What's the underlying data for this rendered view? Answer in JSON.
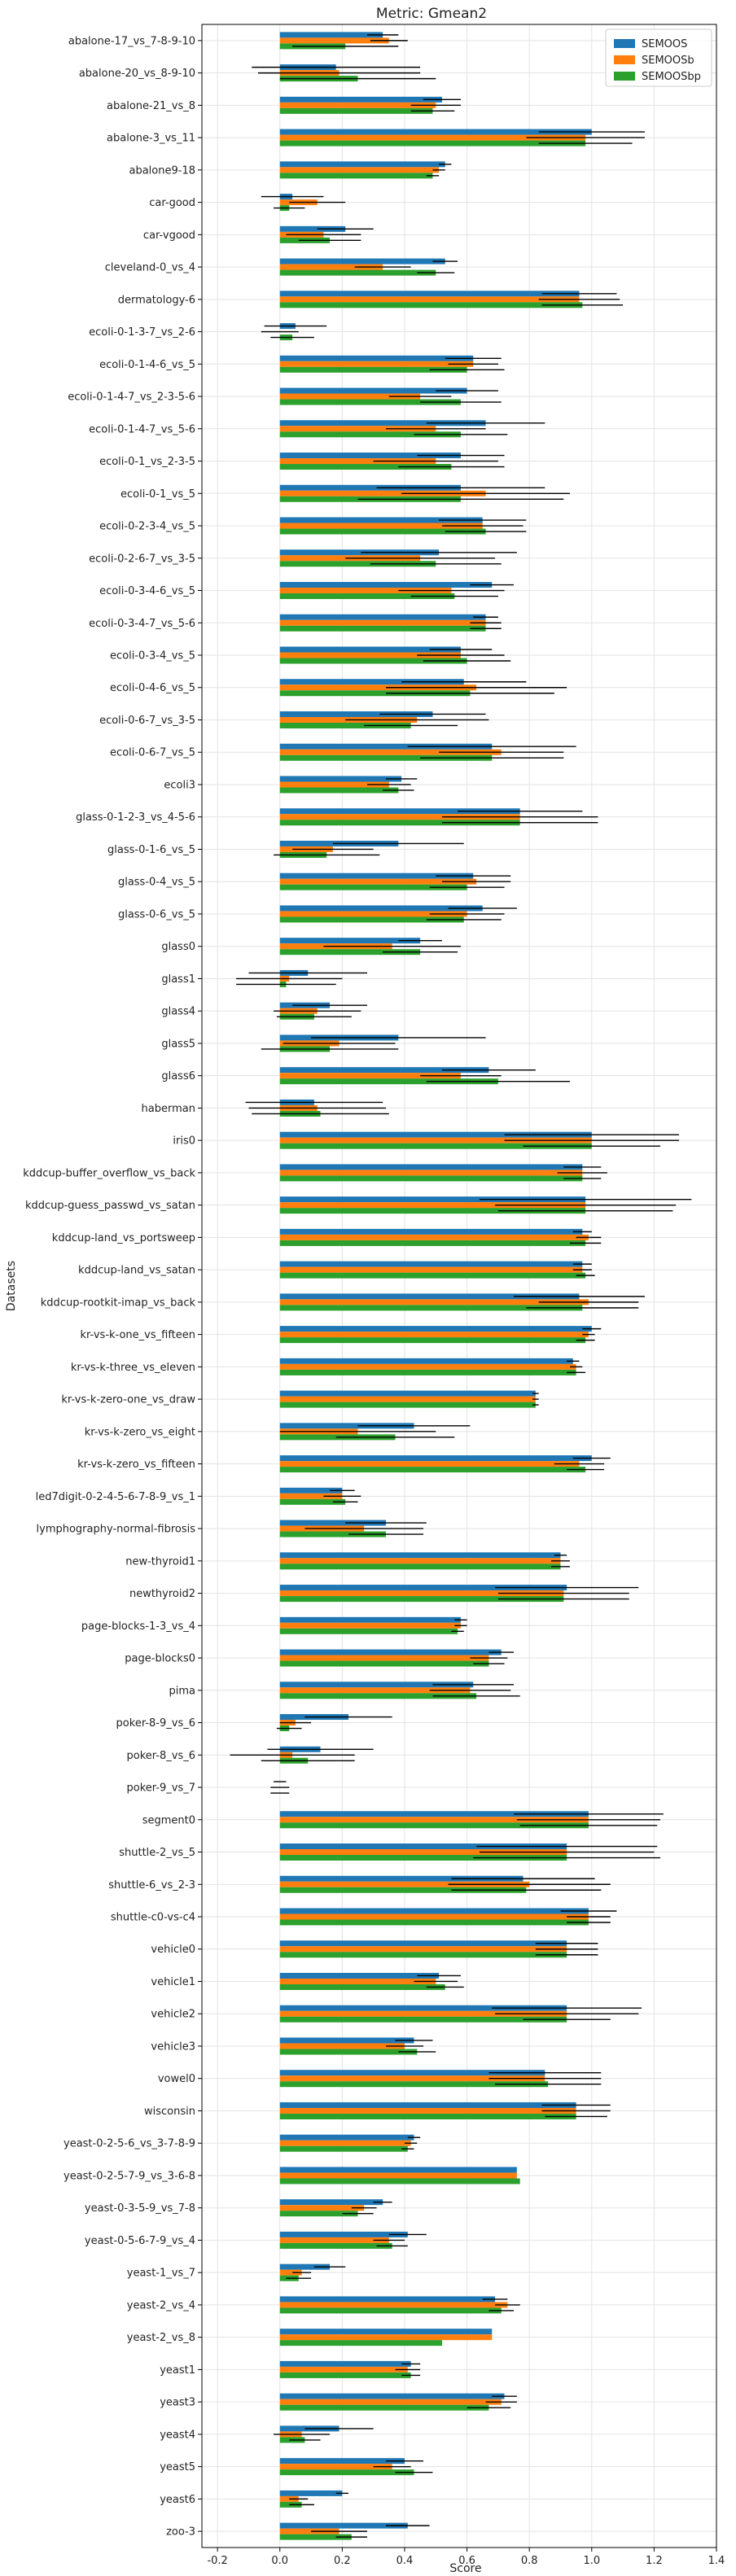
{
  "chart_data": {
    "type": "bar",
    "orientation": "horizontal",
    "title": "Metric: Gmean2",
    "xlabel": "Score",
    "ylabel": "Datasets",
    "xlim": [
      -0.25,
      1.4
    ],
    "xticks": [
      -0.2,
      0.0,
      0.2,
      0.4,
      0.6,
      0.8,
      1.0,
      1.2,
      1.4
    ],
    "grid": true,
    "legend_position": "top-right",
    "series": [
      {
        "name": "SEMOOS",
        "color": "#1f77b4"
      },
      {
        "name": "SEMOOSb",
        "color": "#ff7f0e"
      },
      {
        "name": "SEMOOSbp",
        "color": "#2ca02c"
      }
    ],
    "categories": [
      "abalone-17_vs_7-8-9-10",
      "abalone-20_vs_8-9-10",
      "abalone-21_vs_8",
      "abalone-3_vs_11",
      "abalone9-18",
      "car-good",
      "car-vgood",
      "cleveland-0_vs_4",
      "dermatology-6",
      "ecoli-0-1-3-7_vs_2-6",
      "ecoli-0-1-4-6_vs_5",
      "ecoli-0-1-4-7_vs_2-3-5-6",
      "ecoli-0-1-4-7_vs_5-6",
      "ecoli-0-1_vs_2-3-5",
      "ecoli-0-1_vs_5",
      "ecoli-0-2-3-4_vs_5",
      "ecoli-0-2-6-7_vs_3-5",
      "ecoli-0-3-4-6_vs_5",
      "ecoli-0-3-4-7_vs_5-6",
      "ecoli-0-3-4_vs_5",
      "ecoli-0-4-6_vs_5",
      "ecoli-0-6-7_vs_3-5",
      "ecoli-0-6-7_vs_5",
      "ecoli3",
      "glass-0-1-2-3_vs_4-5-6",
      "glass-0-1-6_vs_5",
      "glass-0-4_vs_5",
      "glass-0-6_vs_5",
      "glass0",
      "glass1",
      "glass4",
      "glass5",
      "glass6",
      "haberman",
      "iris0",
      "kddcup-buffer_overflow_vs_back",
      "kddcup-guess_passwd_vs_satan",
      "kddcup-land_vs_portsweep",
      "kddcup-land_vs_satan",
      "kddcup-rootkit-imap_vs_back",
      "kr-vs-k-one_vs_fifteen",
      "kr-vs-k-three_vs_eleven",
      "kr-vs-k-zero-one_vs_draw",
      "kr-vs-k-zero_vs_eight",
      "kr-vs-k-zero_vs_fifteen",
      "led7digit-0-2-4-5-6-7-8-9_vs_1",
      "lymphography-normal-fibrosis",
      "new-thyroid1",
      "newthyroid2",
      "page-blocks-1-3_vs_4",
      "page-blocks0",
      "pima",
      "poker-8-9_vs_6",
      "poker-8_vs_6",
      "poker-9_vs_7",
      "segment0",
      "shuttle-2_vs_5",
      "shuttle-6_vs_2-3",
      "shuttle-c0-vs-c4",
      "vehicle0",
      "vehicle1",
      "vehicle2",
      "vehicle3",
      "vowel0",
      "wisconsin",
      "yeast-0-2-5-6_vs_3-7-8-9",
      "yeast-0-2-5-7-9_vs_3-6-8",
      "yeast-0-3-5-9_vs_7-8",
      "yeast-0-5-6-7-9_vs_4",
      "yeast-1_vs_7",
      "yeast-2_vs_4",
      "yeast-2_vs_8",
      "yeast1",
      "yeast3",
      "yeast4",
      "yeast5",
      "yeast6",
      "zoo-3"
    ],
    "values": {
      "SEMOOS": [
        0.33,
        0.18,
        0.52,
        1.0,
        0.53,
        0.04,
        0.21,
        0.53,
        0.96,
        0.05,
        0.62,
        0.6,
        0.66,
        0.58,
        0.58,
        0.65,
        0.51,
        0.68,
        0.66,
        0.58,
        0.59,
        0.49,
        0.68,
        0.39,
        0.77,
        0.38,
        0.62,
        0.65,
        0.45,
        0.09,
        0.16,
        0.38,
        0.67,
        0.11,
        1.0,
        0.97,
        0.98,
        0.97,
        0.97,
        0.96,
        1.0,
        0.94,
        0.82,
        0.43,
        1.0,
        0.2,
        0.34,
        0.9,
        0.92,
        0.58,
        0.71,
        0.62,
        0.22,
        0.13,
        0.0,
        0.99,
        0.92,
        0.78,
        0.99,
        0.92,
        0.51,
        0.92,
        0.43,
        0.85,
        0.95,
        0.43,
        0.76,
        0.33,
        0.41,
        0.16,
        0.69,
        0.68,
        0.42,
        0.72,
        0.19,
        0.4,
        0.2,
        0.41
      ],
      "SEMOOSb": [
        0.35,
        0.19,
        0.5,
        0.98,
        0.51,
        0.12,
        0.14,
        0.33,
        0.96,
        0.0,
        0.62,
        0.45,
        0.5,
        0.5,
        0.66,
        0.65,
        0.45,
        0.55,
        0.66,
        0.58,
        0.63,
        0.44,
        0.71,
        0.35,
        0.77,
        0.17,
        0.63,
        0.6,
        0.36,
        0.03,
        0.12,
        0.19,
        0.58,
        0.12,
        1.0,
        0.97,
        0.98,
        0.99,
        0.97,
        0.99,
        0.99,
        0.95,
        0.82,
        0.25,
        0.96,
        0.2,
        0.27,
        0.9,
        0.91,
        0.58,
        0.67,
        0.61,
        0.05,
        0.04,
        0.0,
        0.99,
        0.92,
        0.8,
        0.99,
        0.92,
        0.5,
        0.92,
        0.4,
        0.85,
        0.95,
        0.42,
        0.76,
        0.27,
        0.35,
        0.07,
        0.73,
        0.68,
        0.41,
        0.71,
        0.07,
        0.36,
        0.06,
        0.19
      ],
      "SEMOOSbp": [
        0.21,
        0.25,
        0.49,
        0.98,
        0.49,
        0.03,
        0.16,
        0.5,
        0.97,
        0.04,
        0.6,
        0.58,
        0.58,
        0.55,
        0.58,
        0.66,
        0.5,
        0.56,
        0.66,
        0.6,
        0.61,
        0.42,
        0.68,
        0.38,
        0.77,
        0.15,
        0.6,
        0.59,
        0.45,
        0.02,
        0.11,
        0.16,
        0.7,
        0.13,
        1.0,
        0.97,
        0.98,
        0.98,
        0.98,
        0.97,
        0.98,
        0.95,
        0.82,
        0.37,
        0.98,
        0.21,
        0.34,
        0.9,
        0.91,
        0.57,
        0.67,
        0.63,
        0.03,
        0.09,
        0.0,
        0.99,
        0.92,
        0.79,
        0.99,
        0.92,
        0.53,
        0.92,
        0.44,
        0.86,
        0.95,
        0.41,
        0.77,
        0.25,
        0.36,
        0.06,
        0.71,
        0.52,
        0.42,
        0.67,
        0.08,
        0.43,
        0.07,
        0.23
      ]
    },
    "errors": {
      "SEMOOS": [
        0.05,
        0.27,
        0.06,
        0.17,
        0.02,
        0.1,
        0.09,
        0.04,
        0.12,
        0.1,
        0.09,
        0.1,
        0.19,
        0.14,
        0.27,
        0.14,
        0.25,
        0.07,
        0.04,
        0.1,
        0.2,
        0.17,
        0.27,
        0.05,
        0.2,
        0.21,
        0.12,
        0.11,
        0.07,
        0.19,
        0.12,
        0.28,
        0.15,
        0.22,
        0.28,
        0.06,
        0.34,
        0.03,
        0.03,
        0.21,
        0.03,
        0.02,
        0.01,
        0.18,
        0.06,
        0.04,
        0.13,
        0.02,
        0.23,
        0.02,
        0.04,
        0.13,
        0.14,
        0.17,
        0.02,
        0.24,
        0.29,
        0.23,
        0.09,
        0.1,
        0.07,
        0.24,
        0.06,
        0.18,
        0.11,
        0.02,
        0.0,
        0.03,
        0.06,
        0.05,
        0.04,
        0.0,
        0.03,
        0.04,
        0.11,
        0.06,
        0.02,
        0.07
      ],
      "SEMOOSb": [
        0.06,
        0.26,
        0.08,
        0.19,
        0.02,
        0.09,
        0.12,
        0.09,
        0.13,
        0.06,
        0.08,
        0.1,
        0.16,
        0.2,
        0.27,
        0.13,
        0.24,
        0.17,
        0.05,
        0.14,
        0.29,
        0.23,
        0.2,
        0.07,
        0.25,
        0.13,
        0.11,
        0.12,
        0.22,
        0.17,
        0.14,
        0.18,
        0.13,
        0.22,
        0.28,
        0.08,
        0.29,
        0.04,
        0.03,
        0.16,
        0.02,
        0.02,
        0.01,
        0.25,
        0.08,
        0.06,
        0.19,
        0.03,
        0.21,
        0.02,
        0.06,
        0.13,
        0.05,
        0.2,
        0.03,
        0.23,
        0.28,
        0.26,
        0.07,
        0.1,
        0.07,
        0.23,
        0.06,
        0.18,
        0.11,
        0.02,
        0.0,
        0.04,
        0.05,
        0.03,
        0.04,
        0.0,
        0.04,
        0.05,
        0.09,
        0.06,
        0.03,
        0.09
      ],
      "SEMOOSbp": [
        0.17,
        0.25,
        0.07,
        0.15,
        0.02,
        0.05,
        0.1,
        0.06,
        0.13,
        0.07,
        0.12,
        0.13,
        0.15,
        0.17,
        0.33,
        0.13,
        0.21,
        0.14,
        0.05,
        0.14,
        0.27,
        0.15,
        0.23,
        0.05,
        0.25,
        0.17,
        0.12,
        0.12,
        0.12,
        0.16,
        0.12,
        0.22,
        0.23,
        0.22,
        0.22,
        0.06,
        0.28,
        0.05,
        0.03,
        0.18,
        0.03,
        0.03,
        0.01,
        0.19,
        0.06,
        0.04,
        0.12,
        0.03,
        0.21,
        0.02,
        0.05,
        0.14,
        0.04,
        0.15,
        0.03,
        0.22,
        0.3,
        0.24,
        0.07,
        0.1,
        0.06,
        0.14,
        0.06,
        0.17,
        0.1,
        0.02,
        0.0,
        0.05,
        0.05,
        0.04,
        0.04,
        0.0,
        0.03,
        0.07,
        0.05,
        0.06,
        0.04,
        0.05
      ]
    }
  }
}
